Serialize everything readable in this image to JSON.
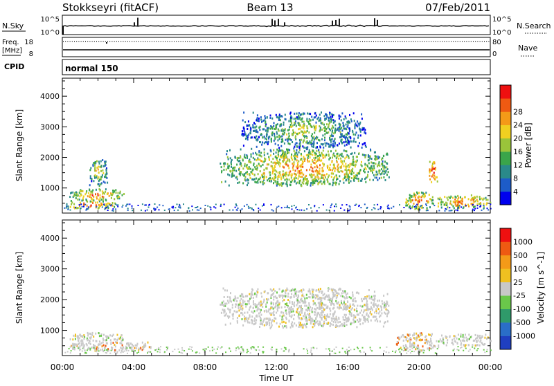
{
  "header": {
    "radar": "Stokkseyri (fitACF)",
    "beam": "Beam 13",
    "date": "07/Feb/2011"
  },
  "noise_panel": {
    "left_label": "N.Sky",
    "left_ticks": [
      "10^5",
      "10^0"
    ],
    "right_label": "N.Search",
    "right_ticks": [
      "10^5",
      "10^0"
    ]
  },
  "freq_panel": {
    "left_label_1": "Freq.",
    "left_label_2": "[MHz]",
    "left_ticks": [
      "18",
      "8"
    ],
    "right_label": "Nave",
    "right_ticks": [
      "80",
      "0"
    ]
  },
  "cpid_panel": {
    "label": "CPID",
    "mode": "normal 150"
  },
  "chart_data": [
    {
      "type": "heatmap",
      "name": "power",
      "ylabel": "Slant Range [km]",
      "ylim": [
        180,
        4590
      ],
      "yticks": [
        1000,
        2000,
        3000,
        4000
      ],
      "xlim": [
        0,
        24
      ],
      "xticks": [
        "00:00",
        "04:00",
        "08:00",
        "12:00",
        "16:00",
        "20:00",
        "00:00"
      ],
      "colorbar": {
        "label": "Power [dB]",
        "ticks": [
          "4",
          "8",
          "12",
          "16",
          "20",
          "24",
          "28"
        ],
        "colors": [
          "#0000ee",
          "#1d5cc8",
          "#2a8a8a",
          "#3aa54a",
          "#9ac43a",
          "#f0d020",
          "#f49a18",
          "#ee5a12",
          "#ee1010"
        ]
      },
      "regions": [
        {
          "t": [
            0.3,
            3.5
          ],
          "r": [
            600,
            1000
          ],
          "level": 0.6
        },
        {
          "t": [
            0.2,
            3.0
          ],
          "r": [
            350,
            600
          ],
          "level": 0.75
        },
        {
          "t": [
            1.5,
            2.5
          ],
          "r": [
            1100,
            2000
          ],
          "level": 0.3
        },
        {
          "t": [
            8.8,
            18.3
          ],
          "r": [
            1100,
            2300
          ],
          "level": 0.55
        },
        {
          "t": [
            10,
            17
          ],
          "r": [
            2300,
            3500
          ],
          "level": 0.15
        },
        {
          "t": [
            19.2,
            20.8
          ],
          "r": [
            300,
            900
          ],
          "level": 0.7
        },
        {
          "t": [
            20.5,
            21
          ],
          "r": [
            1200,
            1900
          ],
          "level": 0.9
        },
        {
          "t": [
            21,
            24
          ],
          "r": [
            350,
            800
          ],
          "level": 0.7
        }
      ]
    },
    {
      "type": "heatmap",
      "name": "velocity",
      "ylabel": "Slant Range [km]",
      "ylim": [
        180,
        4590
      ],
      "yticks": [
        1000,
        2000,
        3000,
        4000
      ],
      "xlim": [
        0,
        24
      ],
      "xticks": [
        "00:00",
        "04:00",
        "08:00",
        "12:00",
        "16:00",
        "20:00",
        "00:00"
      ],
      "xlabel": "Time UT",
      "colorbar": {
        "label": "Velocity [m s^-1]",
        "ticks": [
          "1000",
          "500",
          "100",
          "25",
          "-25",
          "-100",
          "-500",
          "-1000"
        ],
        "colors": [
          "#1f3fc0",
          "#2a6ec8",
          "#2f9a6a",
          "#6ac84a",
          "#c8c8c8",
          "#f0c020",
          "#f49a18",
          "#ee5a12",
          "#ee1010"
        ]
      },
      "regions": [
        {
          "t": [
            0.3,
            3.5
          ],
          "r": [
            650,
            950
          ],
          "level": 0.45
        },
        {
          "t": [
            0.2,
            5.0
          ],
          "r": [
            350,
            650
          ],
          "level": 0.7
        },
        {
          "t": [
            8.8,
            18.3
          ],
          "r": [
            1100,
            2400
          ],
          "level": 0.45
        },
        {
          "t": [
            18.7,
            21
          ],
          "r": [
            350,
            950
          ],
          "level": 0.8
        },
        {
          "t": [
            21,
            24
          ],
          "r": [
            500,
            900
          ],
          "level": 0.45
        }
      ]
    }
  ]
}
